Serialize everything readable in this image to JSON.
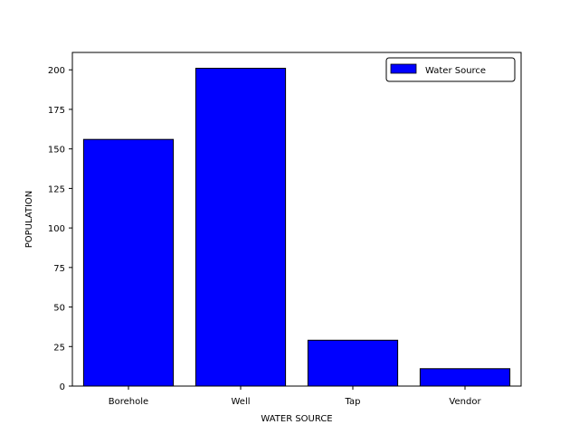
{
  "chart_data": {
    "type": "bar",
    "title": "",
    "xlabel": "WATER SOURCE",
    "ylabel": "POPULATION",
    "categories": [
      "Borehole",
      "Well",
      "Tap",
      "Vendor"
    ],
    "series": [
      {
        "name": "Water Source",
        "values": [
          156,
          201,
          29,
          11
        ],
        "color": "#0000ff"
      }
    ],
    "ylim": [
      0,
      211
    ],
    "yticks": [
      0,
      25,
      50,
      75,
      100,
      125,
      150,
      175,
      200
    ],
    "grid": false,
    "legend_position": "top-right",
    "bar_edge_color": "#000000"
  }
}
